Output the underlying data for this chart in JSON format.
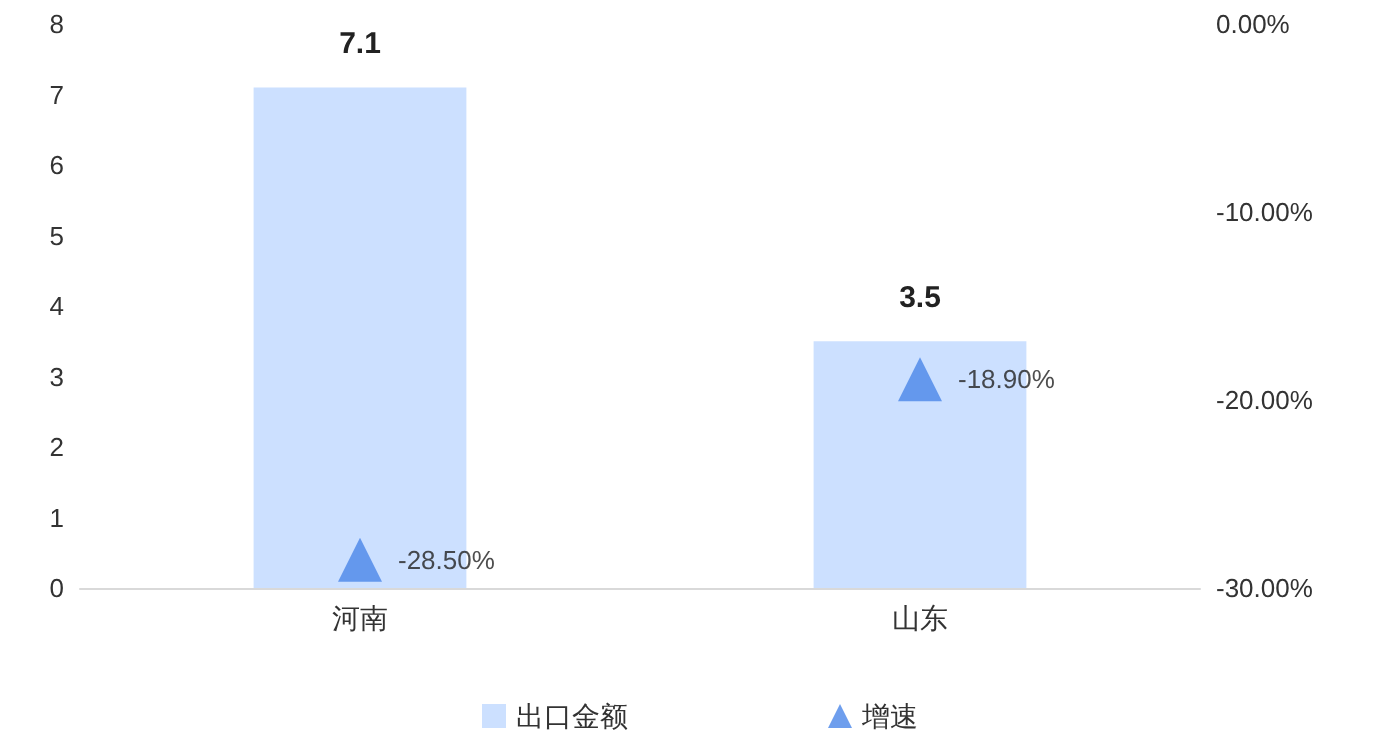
{
  "chart_data": {
    "type": "bar",
    "categories": [
      "河南",
      "山东"
    ],
    "series": [
      {
        "name": "出口金额",
        "color": "#cce0ff",
        "values": [
          7.1,
          3.5
        ],
        "value_labels": [
          "7.1",
          "3.5"
        ]
      },
      {
        "name": "增速",
        "type": "scatter",
        "axis": "y2",
        "x": [
          "河南",
          "山东"
        ],
        "color": "#4a86e8",
        "marker": "triangle",
        "values": [
          -28.5,
          -18.9
        ],
        "value_labels": [
          "-28.50%",
          "-18.90%"
        ]
      }
    ],
    "ylim": [
      0,
      8
    ],
    "yticks": [
      0,
      1,
      2,
      3,
      4,
      5,
      6,
      7,
      8
    ],
    "y2lim": [
      -30,
      0
    ],
    "y2ticks": [
      {
        "value": -30,
        "label": "-30.00%"
      },
      {
        "value": -20,
        "label": "-20.00%"
      },
      {
        "value": -10,
        "label": "-10.00%"
      },
      {
        "value": 0,
        "label": "0.00%"
      }
    ],
    "grid": false,
    "legend": "bottom"
  }
}
